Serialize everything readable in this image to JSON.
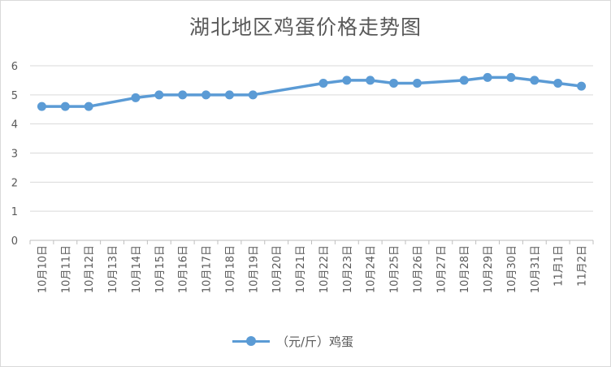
{
  "chart_data": {
    "type": "line",
    "title": "湖北地区鸡蛋价格走势图",
    "categories": [
      "10月10日",
      "10月11日",
      "10月12日",
      "10月13日",
      "10月14日",
      "10月15日",
      "10月16日",
      "10月17日",
      "10月18日",
      "10月19日",
      "10月20日",
      "10月21日",
      "10月22日",
      "10月23日",
      "10月24日",
      "10月25日",
      "10月26日",
      "10月27日",
      "10月28日",
      "10月29日",
      "10月30日",
      "10月31日",
      "11月1日",
      "11月2日"
    ],
    "y_ticks": [
      "0",
      "1",
      "2",
      "3",
      "4",
      "5",
      "6"
    ],
    "ylim": [
      0,
      6
    ],
    "grid": true,
    "legend": "bottom",
    "series": [
      {
        "name": "（元/斤）鸡蛋",
        "color": "#5b9bd5",
        "values": [
          4.6,
          4.6,
          4.6,
          null,
          4.9,
          5.0,
          5.0,
          5.0,
          5.0,
          5.0,
          null,
          null,
          5.4,
          5.5,
          5.5,
          5.4,
          5.4,
          null,
          5.5,
          5.6,
          5.6,
          5.5,
          5.4,
          5.3
        ]
      }
    ]
  }
}
